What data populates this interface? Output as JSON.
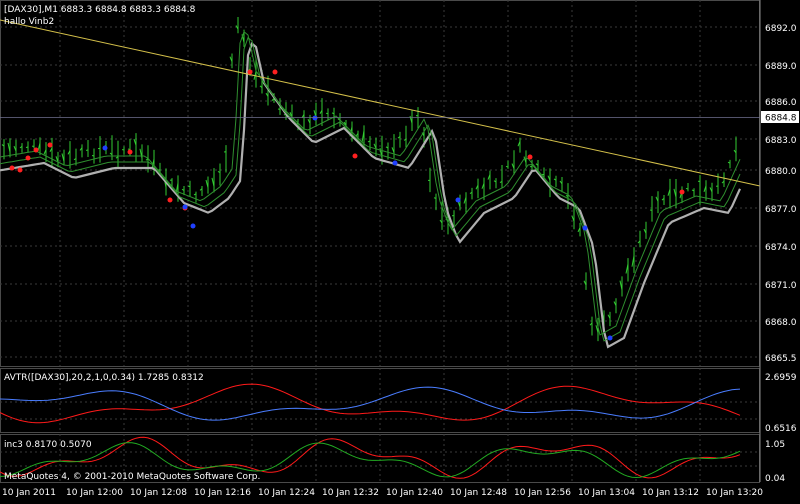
{
  "header": {
    "symbol_line": "[DAX30],M1  6883.3 6884.8 6883.3 6884.8",
    "indicator_line": "hallo Vinb2"
  },
  "price_axis": {
    "labels": [
      "6892.0",
      "6889.0",
      "6886.0",
      "6883.0",
      "6880.0",
      "6877.0",
      "6874.0",
      "6871.0",
      "6868.0",
      "6865.5"
    ],
    "current_price": "6884.8"
  },
  "panel2": {
    "title": "AVTR([DAX30],20,2,1,0,0.34) 1.7285 0.8312",
    "labels": [
      "2.6959",
      "0.6516"
    ]
  },
  "panel3": {
    "title": "inc3 0.8170 0.5070",
    "labels": [
      "1.05",
      "0.04"
    ]
  },
  "time_axis": {
    "labels": [
      "10 Jan 2011",
      "10 Jan 12:00",
      "10 Jan 12:08",
      "10 Jan 12:16",
      "10 Jan 12:24",
      "10 Jan 12:32",
      "10 Jan 12:40",
      "10 Jan 12:48",
      "10 Jan 12:56",
      "10 Jan 13:04",
      "10 Jan 13:12",
      "10 Jan 13:20"
    ]
  },
  "footer": {
    "copyright": "MetaQuotes 4, © 2001-2010 MetaQuotes Software Corp."
  },
  "colors": {
    "background": "#000000",
    "grid": "#3a3a3a",
    "bars": "#32cd32",
    "ma_gray": "#b0b0b0",
    "ma_green": "#2f8f2f",
    "trendline": "#d4c04a",
    "marker_red": "#ff2020",
    "marker_blue": "#2040ff",
    "avtr_red": "#ff1a1a",
    "avtr_blue": "#4a7dff",
    "inc_red": "#ff1a1a",
    "inc_green": "#22aa22"
  }
}
